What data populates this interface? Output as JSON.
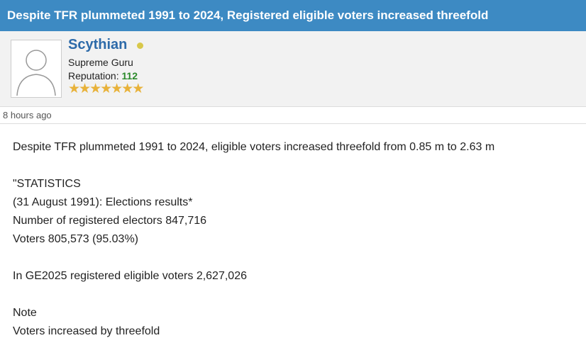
{
  "header": {
    "title": "Despite TFR plummeted 1991 to 2024, Registered eligible voters increased threefold"
  },
  "user": {
    "name": "Scythian",
    "rank": "Supreme Guru",
    "reputation_label": "Reputation:",
    "reputation": "112"
  },
  "post": {
    "time": "8 hours ago",
    "lines": [
      "Despite TFR plummeted 1991 to 2024, eligible voters increased threefold from 0.85 m to 2.63 m",
      "\"STATISTICS",
      "(31 August 1991): Elections results*",
      "Number of registered electors 847,716",
      "Voters 805,573 (95.03%)",
      "In GE2025 registered eligible voters 2,627,026",
      "Note",
      "Voters increased by threefold"
    ]
  }
}
